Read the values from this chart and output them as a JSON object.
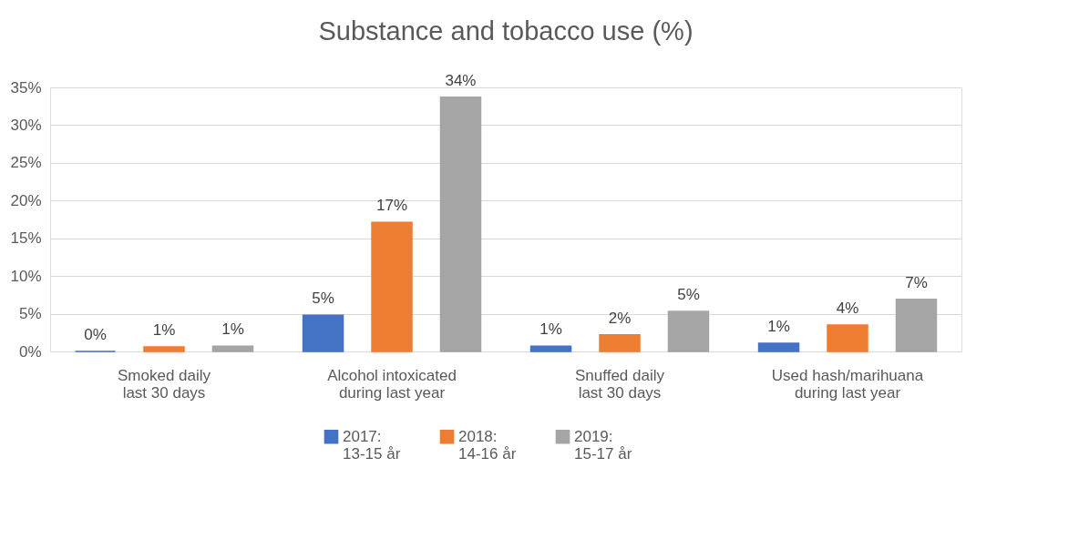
{
  "chart_data": {
    "type": "bar",
    "title": "Substance and tobacco use (%)",
    "categories": [
      "Smoked daily\nlast 30 days",
      "Alcohol intoxicated\nduring last year",
      "Snuffed daily\nlast 30 days",
      "Used hash/marihuana\nduring last year"
    ],
    "series": [
      {
        "name": "2017:\n13-15 år",
        "color": "#4472c4",
        "values": [
          0,
          4.8,
          0.7,
          1.1
        ],
        "value_labels": [
          "0%",
          "5%",
          "1%",
          "1%"
        ]
      },
      {
        "name": "2018:\n14-16 år",
        "color": "#ed7d31",
        "values": [
          0.6,
          17.1,
          2.2,
          3.5
        ],
        "value_labels": [
          "1%",
          "17%",
          "2%",
          "4%"
        ]
      },
      {
        "name": "2019:\n15-17 år",
        "color": "#a5a5a5",
        "values": [
          0.7,
          33.7,
          5.3,
          6.9
        ],
        "value_labels": [
          "1%",
          "34%",
          "5%",
          "7%"
        ]
      }
    ],
    "ylim": [
      0,
      35
    ],
    "yticks": [
      {
        "value": 0,
        "label": "0%"
      },
      {
        "value": 5,
        "label": "5%"
      },
      {
        "value": 10,
        "label": "10%"
      },
      {
        "value": 15,
        "label": "15%"
      },
      {
        "value": 20,
        "label": "20%"
      },
      {
        "value": 25,
        "label": "25%"
      },
      {
        "value": 30,
        "label": "30%"
      },
      {
        "value": 35,
        "label": "35%"
      }
    ],
    "grid": "y",
    "legend": "bottom"
  }
}
